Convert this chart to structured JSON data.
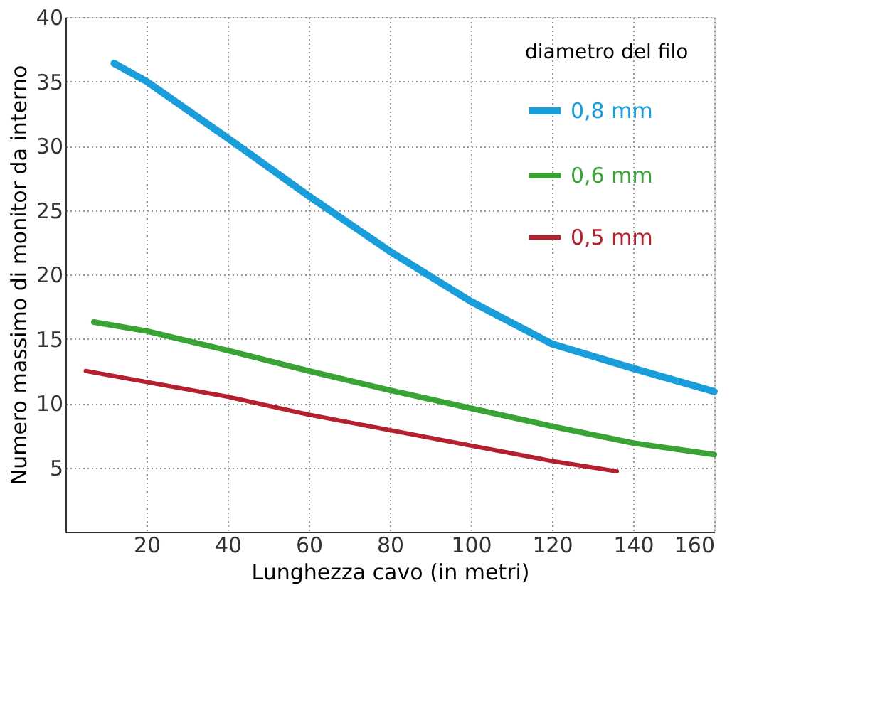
{
  "chart_data": {
    "type": "line",
    "xlabel": "Lunghezza cavo (in metri)",
    "ylabel": "Numero massimo di monitor da interno",
    "legend_title": "diametro del filo",
    "xlim": [
      0,
      160
    ],
    "ylim": [
      0,
      40
    ],
    "xticks": [
      20,
      40,
      60,
      80,
      100,
      120,
      140,
      160
    ],
    "yticks": [
      5,
      10,
      15,
      20,
      25,
      30,
      35,
      40
    ],
    "grid": true,
    "legend": "top right",
    "line_style": "solid",
    "marker": "none",
    "series": [
      {
        "name": "0,8 mm",
        "color": "#1a9ddb",
        "x": [
          12,
          20,
          40,
          60,
          80,
          100,
          120,
          140,
          160
        ],
        "values": [
          36.4,
          35.0,
          30.6,
          26.1,
          21.8,
          17.9,
          14.6,
          12.7,
          10.9
        ]
      },
      {
        "name": "0,6 mm",
        "color": "#3aa335",
        "x": [
          7,
          20,
          40,
          60,
          80,
          100,
          120,
          140,
          160
        ],
        "values": [
          16.3,
          15.6,
          14.1,
          12.5,
          11.0,
          9.6,
          8.2,
          6.9,
          6.0
        ]
      },
      {
        "name": "0,5 mm",
        "color": "#b5202e",
        "x": [
          5,
          40,
          60,
          80,
          100,
          120,
          136
        ],
        "values": [
          12.5,
          10.5,
          9.1,
          7.9,
          6.7,
          5.5,
          4.7
        ]
      }
    ]
  }
}
